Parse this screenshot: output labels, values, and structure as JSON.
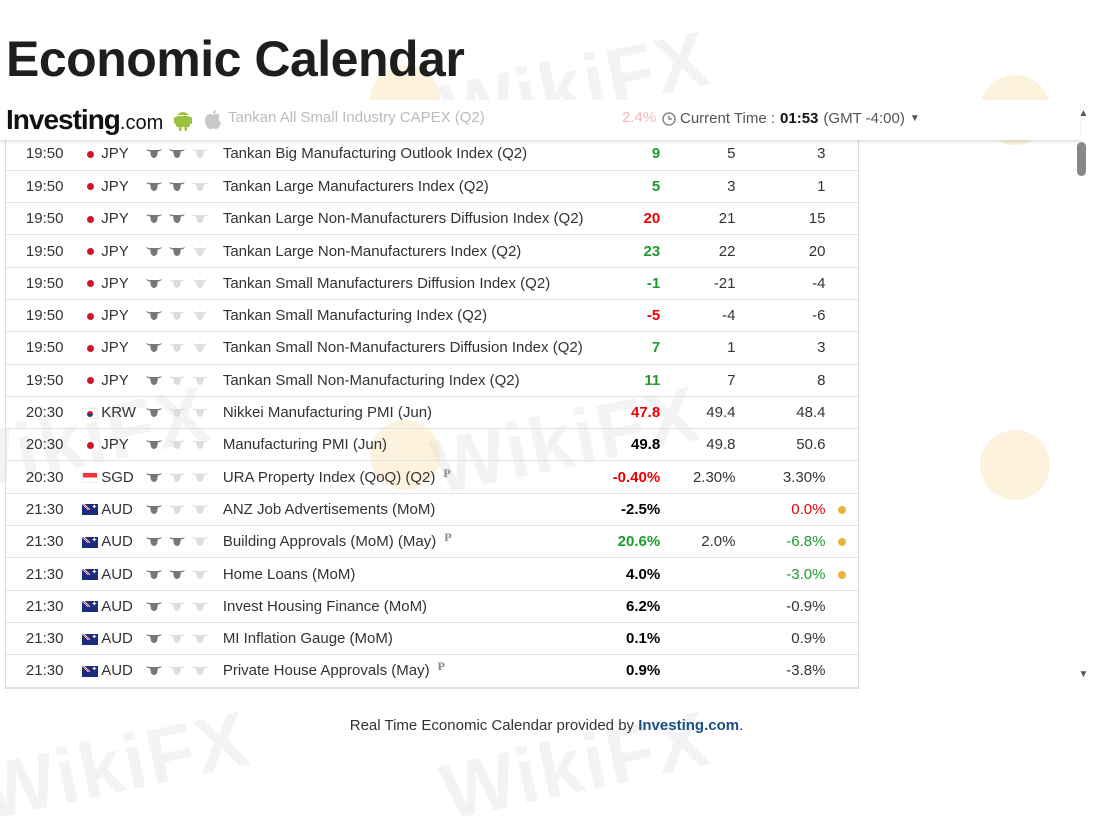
{
  "page_title": "Economic Calendar",
  "header": {
    "brand": "Investing",
    "tld": ".com",
    "partial_event": "Tankan All Small Industry CAPEX (Q2)",
    "partial_value": "2.4%",
    "current_time_label": "Current Time :",
    "current_time": "01:53",
    "timezone": "(GMT -4:00)"
  },
  "colors": {
    "positive": "#1e9c2e",
    "negative": "#e00000",
    "neutral": "#000000",
    "dot": "#e8b33b",
    "link": "#1a4f86"
  },
  "rows": [
    {
      "time": "19:50",
      "flag": "jp",
      "currency": "JPY",
      "importance": 2,
      "event": "Tankan Big Manufacturing Outlook Index (Q2)",
      "prelim": false,
      "actual": "9",
      "actual_color": "green",
      "forecast": "5",
      "previous": "3",
      "previous_color": "",
      "dot": false
    },
    {
      "time": "19:50",
      "flag": "jp",
      "currency": "JPY",
      "importance": 2,
      "event": "Tankan Large Manufacturers Index (Q2)",
      "prelim": false,
      "actual": "5",
      "actual_color": "green",
      "forecast": "3",
      "previous": "1",
      "previous_color": "",
      "dot": false
    },
    {
      "time": "19:50",
      "flag": "jp",
      "currency": "JPY",
      "importance": 2,
      "event": "Tankan Large Non-Manufacturers Diffusion Index (Q2)",
      "prelim": false,
      "actual": "20",
      "actual_color": "red",
      "forecast": "21",
      "previous": "15",
      "previous_color": "",
      "dot": false
    },
    {
      "time": "19:50",
      "flag": "jp",
      "currency": "JPY",
      "importance": 2,
      "event": "Tankan Large Non-Manufacturers Index (Q2)",
      "prelim": false,
      "actual": "23",
      "actual_color": "green",
      "forecast": "22",
      "previous": "20",
      "previous_color": "",
      "dot": false
    },
    {
      "time": "19:50",
      "flag": "jp",
      "currency": "JPY",
      "importance": 1,
      "event": "Tankan Small Manufacturers Diffusion Index (Q2)",
      "prelim": false,
      "actual": "-1",
      "actual_color": "green",
      "forecast": "-21",
      "previous": "-4",
      "previous_color": "",
      "dot": false
    },
    {
      "time": "19:50",
      "flag": "jp",
      "currency": "JPY",
      "importance": 1,
      "event": "Tankan Small Manufacturing Index (Q2)",
      "prelim": false,
      "actual": "-5",
      "actual_color": "red",
      "forecast": "-4",
      "previous": "-6",
      "previous_color": "",
      "dot": false
    },
    {
      "time": "19:50",
      "flag": "jp",
      "currency": "JPY",
      "importance": 1,
      "event": "Tankan Small Non-Manufacturers Diffusion Index (Q2)",
      "prelim": false,
      "actual": "7",
      "actual_color": "green",
      "forecast": "1",
      "previous": "3",
      "previous_color": "",
      "dot": false
    },
    {
      "time": "19:50",
      "flag": "jp",
      "currency": "JPY",
      "importance": 1,
      "event": "Tankan Small Non-Manufacturing Index (Q2)",
      "prelim": false,
      "actual": "11",
      "actual_color": "green",
      "forecast": "7",
      "previous": "8",
      "previous_color": "",
      "dot": false
    },
    {
      "time": "20:30",
      "flag": "kr",
      "currency": "KRW",
      "importance": 1,
      "event": "Nikkei Manufacturing PMI (Jun)",
      "prelim": false,
      "actual": "47.8",
      "actual_color": "red",
      "forecast": "49.4",
      "previous": "48.4",
      "previous_color": "",
      "dot": false
    },
    {
      "time": "20:30",
      "flag": "jp",
      "currency": "JPY",
      "importance": 1,
      "event": "Manufacturing PMI (Jun)",
      "prelim": false,
      "actual": "49.8",
      "actual_color": "black",
      "forecast": "49.8",
      "previous": "50.6",
      "previous_color": "",
      "dot": false
    },
    {
      "time": "20:30",
      "flag": "sg",
      "currency": "SGD",
      "importance": 1,
      "event": "URA Property Index (QoQ) (Q2)",
      "prelim": true,
      "actual": "-0.40%",
      "actual_color": "red",
      "forecast": "2.30%",
      "previous": "3.30%",
      "previous_color": "",
      "dot": false
    },
    {
      "time": "21:30",
      "flag": "au",
      "currency": "AUD",
      "importance": 1,
      "event": "ANZ Job Advertisements (MoM)",
      "prelim": false,
      "actual": "-2.5%",
      "actual_color": "black",
      "forecast": "",
      "previous": "0.0%",
      "previous_color": "red",
      "dot": true
    },
    {
      "time": "21:30",
      "flag": "au",
      "currency": "AUD",
      "importance": 2,
      "event": "Building Approvals (MoM) (May)",
      "prelim": true,
      "actual": "20.6%",
      "actual_color": "green",
      "forecast": "2.0%",
      "previous": "-6.8%",
      "previous_color": "green",
      "dot": true
    },
    {
      "time": "21:30",
      "flag": "au",
      "currency": "AUD",
      "importance": 2,
      "event": "Home Loans (MoM)",
      "prelim": false,
      "actual": "4.0%",
      "actual_color": "black",
      "forecast": "",
      "previous": "-3.0%",
      "previous_color": "green",
      "dot": true
    },
    {
      "time": "21:30",
      "flag": "au",
      "currency": "AUD",
      "importance": 1,
      "event": "Invest Housing Finance (MoM)",
      "prelim": false,
      "actual": "6.2%",
      "actual_color": "black",
      "forecast": "",
      "previous": "-0.9%",
      "previous_color": "",
      "dot": false
    },
    {
      "time": "21:30",
      "flag": "au",
      "currency": "AUD",
      "importance": 1,
      "event": "MI Inflation Gauge (MoM)",
      "prelim": false,
      "actual": "0.1%",
      "actual_color": "black",
      "forecast": "",
      "previous": "0.9%",
      "previous_color": "",
      "dot": false
    },
    {
      "time": "21:30",
      "flag": "au",
      "currency": "AUD",
      "importance": 1,
      "event": "Private House Approvals (May)",
      "prelim": true,
      "actual": "0.9%",
      "actual_color": "black",
      "forecast": "",
      "previous": "-3.8%",
      "previous_color": "",
      "dot": false
    }
  ],
  "prelim_marker": "P",
  "footer": {
    "text": "Real Time Economic Calendar provided by",
    "link": "Investing.com",
    "suffix": "."
  },
  "watermark": "WikiFX"
}
